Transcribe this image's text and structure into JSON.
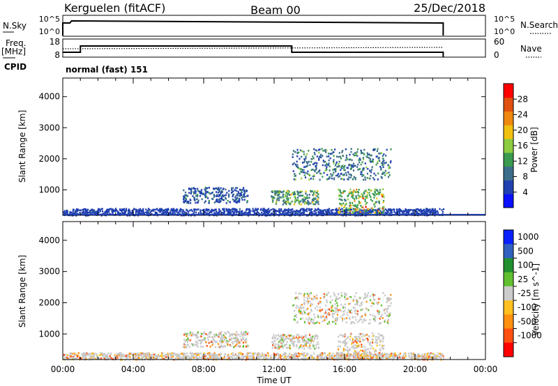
{
  "header": {
    "station": "Kerguelen (fitACF)",
    "beam": "Beam 00",
    "date": "25/Dec/2018"
  },
  "aux": {
    "nsky_label": "N.Sky",
    "nsky_ticks": [
      "10^5",
      "10^0"
    ],
    "nsearch_label": "N.Search",
    "nsearch_ticks": [
      "10^5",
      "10^0"
    ],
    "freq_label": "Freq.",
    "freq_unit": "[MHz]",
    "freq_ticks": [
      "18",
      "8"
    ],
    "nave_label": "Nave",
    "nave_ticks": [
      "60",
      "0"
    ],
    "cpid_label": "CPID",
    "cpid_text": "normal (fast) 151"
  },
  "colors": {
    "power": [
      "#0a10ff",
      "#2040b0",
      "#3c6e8c",
      "#3a9a50",
      "#8ccc40",
      "#f0c010",
      "#f08810",
      "#e05010",
      "#ff0000"
    ],
    "velocity": [
      "#ff0000",
      "#ff5010",
      "#ff9010",
      "#ffc020",
      "#cccccc",
      "#cccccc",
      "#60c030",
      "#209030",
      "#3060c0",
      "#0a20ff"
    ],
    "ground_scatter": "#c8c8c8"
  },
  "chart_data": [
    {
      "type": "heatmap",
      "panel": "power",
      "xlabel": "",
      "ylabel": "Slant Range [km]",
      "xlim": [
        "00:00",
        "24:00"
      ],
      "ylim": [
        180,
        4600
      ],
      "yticks": [
        1000,
        2000,
        3000,
        4000
      ],
      "colorbar": {
        "label": "Power [dB]",
        "range": [
          0,
          32
        ],
        "ticks": [
          "4",
          "8",
          "12",
          "16",
          "20",
          "24",
          "28"
        ]
      },
      "echo_regions": [
        {
          "t0": 0.0,
          "t1": 21.6,
          "r0": 200,
          "r1": 420,
          "peak_db": 8
        },
        {
          "t0": 6.8,
          "t1": 10.5,
          "r0": 600,
          "r1": 1100,
          "peak_db": 14
        },
        {
          "t0": 11.8,
          "t1": 14.5,
          "r0": 550,
          "r1": 1000,
          "peak_db": 24
        },
        {
          "t0": 13.0,
          "t1": 18.6,
          "r0": 1350,
          "r1": 2350,
          "peak_db": 18
        },
        {
          "t0": 15.6,
          "t1": 18.2,
          "r0": 220,
          "r1": 1050,
          "peak_db": 30
        }
      ]
    },
    {
      "type": "heatmap",
      "panel": "velocity",
      "xlabel": "Time UT",
      "ylabel": "Slant Range [km]",
      "xlim": [
        "00:00",
        "24:00"
      ],
      "ylim": [
        180,
        4600
      ],
      "xticks": [
        "00:00",
        "04:00",
        "08:00",
        "12:00",
        "16:00",
        "20:00",
        "00:00"
      ],
      "yticks": [
        1000,
        2000,
        3000,
        4000
      ],
      "colorbar": {
        "label": "Velocity [m s^-1]",
        "ticks": [
          "1000",
          "500",
          "100",
          "25",
          "-25",
          "-100",
          "-500",
          "-1000"
        ]
      },
      "echo_regions": [
        {
          "t0": 0.0,
          "t1": 21.6,
          "r0": 200,
          "r1": 420,
          "velocity": -120
        },
        {
          "t0": 6.8,
          "t1": 10.5,
          "r0": 600,
          "r1": 1100,
          "velocity": 0
        },
        {
          "t0": 11.8,
          "t1": 14.5,
          "r0": 550,
          "r1": 1000,
          "velocity": 0
        },
        {
          "t0": 13.0,
          "t1": 18.6,
          "r0": 1350,
          "r1": 2350,
          "velocity": 0
        },
        {
          "t0": 15.6,
          "t1": 18.2,
          "r0": 220,
          "r1": 1050,
          "velocity": -150
        }
      ]
    }
  ]
}
